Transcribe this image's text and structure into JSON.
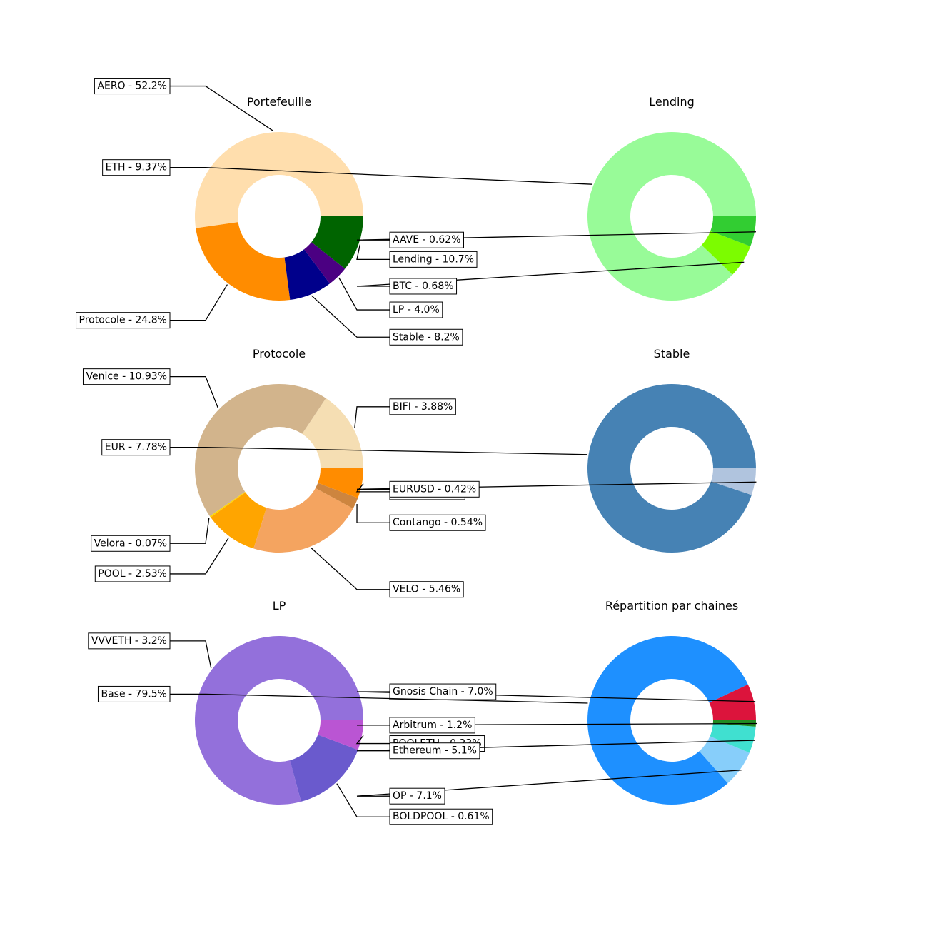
{
  "chart_data": [
    {
      "type": "pie",
      "title": "Portefeuille",
      "startangle": 0,
      "slices": [
        {
          "label": "AERO - 52.2%",
          "value": 52.2,
          "color": "#FFDEAD"
        },
        {
          "label": "Protocole - 24.8%",
          "value": 24.8,
          "color": "#FF8C00"
        },
        {
          "label": "Stable - 8.2%",
          "value": 8.2,
          "color": "#00008B"
        },
        {
          "label": "LP - 4.0%",
          "value": 4.0,
          "color": "#4B0082"
        },
        {
          "label": "Lending - 10.7%",
          "value": 10.7,
          "color": "#006400"
        }
      ]
    },
    {
      "type": "pie",
      "title": "Lending",
      "startangle": 0,
      "slices": [
        {
          "label": "ETH - 9.37%",
          "value": 9.37,
          "color": "#98FB98"
        },
        {
          "label": "BTC - 0.68%",
          "value": 0.68,
          "color": "#7CFC00"
        },
        {
          "label": "AAVE - 0.62%",
          "value": 0.62,
          "color": "#32CD32"
        }
      ]
    },
    {
      "type": "pie",
      "title": "Protocole",
      "startangle": 0,
      "slices": [
        {
          "label": "BIFI - 3.88%",
          "value": 3.88,
          "color": "#F5DEB3"
        },
        {
          "label": "Venice - 10.93%",
          "value": 10.93,
          "color": "#D2B48C"
        },
        {
          "label": "Velora - 0.07%",
          "value": 0.07,
          "color": "#FFD700"
        },
        {
          "label": "POOL - 2.53%",
          "value": 2.53,
          "color": "#FFA500"
        },
        {
          "label": "VELO - 5.46%",
          "value": 5.46,
          "color": "#F4A460"
        },
        {
          "label": "Contango - 0.54%",
          "value": 0.54,
          "color": "#CD853F"
        },
        {
          "label": "OVER - 1.43%",
          "value": 1.43,
          "color": "#FF8C00"
        }
      ]
    },
    {
      "type": "pie",
      "title": "Stable",
      "startangle": 0,
      "slices": [
        {
          "label": "EUR - 7.78%",
          "value": 7.78,
          "color": "#4682B4"
        },
        {
          "label": "EURUSD - 0.42%",
          "value": 0.42,
          "color": "#B0C4DE"
        }
      ]
    },
    {
      "type": "pie",
      "title": "LP",
      "startangle": 0,
      "slices": [
        {
          "label": "VVVETH - 3.2%",
          "value": 3.2,
          "color": "#9370DB"
        },
        {
          "label": "BOLDPOOL - 0.61%",
          "value": 0.61,
          "color": "#6A5ACD"
        },
        {
          "label": "POOLETH - 0.23%",
          "value": 0.23,
          "color": "#BA55D3"
        }
      ]
    },
    {
      "type": "pie",
      "title": "Répartition par chaines",
      "startangle": 0,
      "slices": [
        {
          "label": "Gnosis Chain - 7.0%",
          "value": 7.0,
          "color": "#DC143C"
        },
        {
          "label": "Base - 79.5%",
          "value": 79.5,
          "color": "#1E90FF"
        },
        {
          "label": "OP - 7.1%",
          "value": 7.1,
          "color": "#87CEFA"
        },
        {
          "label": "Ethereum - 5.1%",
          "value": 5.1,
          "color": "#40E0D0"
        },
        {
          "label": "Arbitrum - 1.2%",
          "value": 1.2,
          "color": "#228B22"
        }
      ]
    }
  ]
}
